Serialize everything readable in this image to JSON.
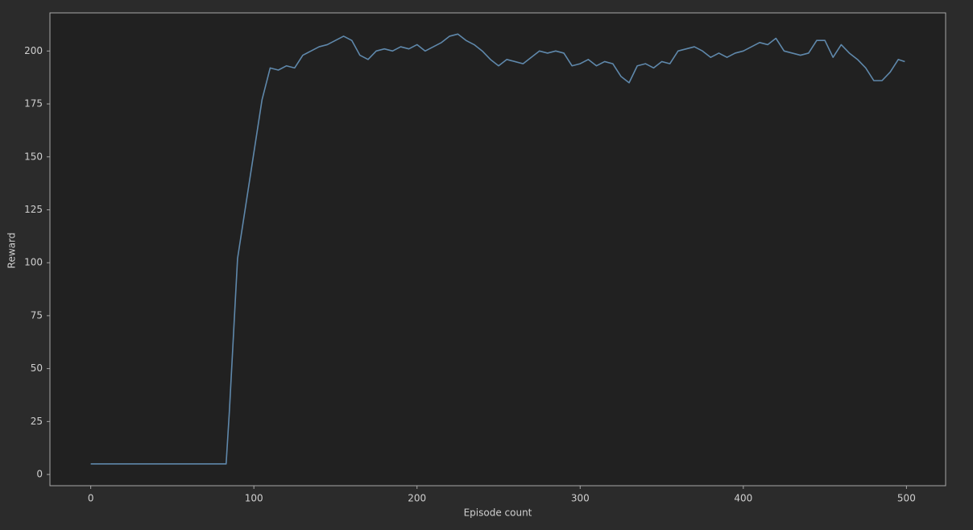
{
  "chart_data": {
    "type": "line",
    "xlabel": "Episode count",
    "ylabel": "Reward",
    "x": [
      0,
      5,
      10,
      15,
      20,
      25,
      30,
      35,
      40,
      45,
      50,
      55,
      60,
      65,
      70,
      75,
      80,
      83,
      85,
      90,
      95,
      100,
      105,
      110,
      115,
      120,
      125,
      130,
      135,
      140,
      145,
      150,
      155,
      160,
      165,
      170,
      175,
      180,
      185,
      190,
      195,
      200,
      205,
      210,
      215,
      220,
      225,
      230,
      235,
      240,
      245,
      250,
      255,
      260,
      265,
      270,
      275,
      280,
      285,
      290,
      295,
      300,
      305,
      310,
      315,
      320,
      325,
      330,
      335,
      340,
      345,
      350,
      355,
      360,
      365,
      370,
      375,
      380,
      385,
      390,
      395,
      400,
      405,
      410,
      415,
      420,
      425,
      430,
      435,
      440,
      445,
      450,
      455,
      460,
      465,
      470,
      475,
      480,
      485,
      490,
      495,
      499
    ],
    "values": [
      5,
      5,
      5,
      5,
      5,
      5,
      5,
      5,
      5,
      5,
      5,
      5,
      5,
      5,
      5,
      5,
      5,
      5,
      30,
      102,
      127,
      152,
      177,
      192,
      191,
      193,
      192,
      198,
      200,
      202,
      203,
      205,
      207,
      205,
      198,
      196,
      200,
      201,
      200,
      202,
      201,
      203,
      200,
      202,
      204,
      207,
      208,
      205,
      203,
      200,
      196,
      193,
      196,
      195,
      194,
      197,
      200,
      199,
      200,
      199,
      193,
      194,
      196,
      193,
      195,
      194,
      188,
      185,
      193,
      194,
      192,
      195,
      194,
      200,
      201,
      202,
      200,
      197,
      199,
      197,
      199,
      200,
      202,
      204,
      203,
      206,
      200,
      199,
      198,
      199,
      205,
      205,
      197,
      203,
      199,
      196,
      192,
      186,
      186,
      190,
      196,
      195
    ],
    "color": "#5f88ab",
    "xlim": [
      -25,
      524
    ],
    "ylim": [
      -5.3,
      218
    ],
    "xticks": [
      0,
      100,
      200,
      300,
      400,
      500
    ],
    "yticks": [
      0,
      25,
      50,
      75,
      100,
      125,
      150,
      175,
      200
    ],
    "grid": false
  }
}
